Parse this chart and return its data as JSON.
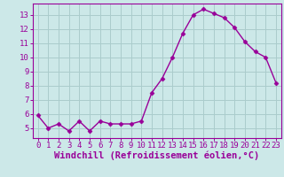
{
  "x": [
    0,
    1,
    2,
    3,
    4,
    5,
    6,
    7,
    8,
    9,
    10,
    11,
    12,
    13,
    14,
    15,
    16,
    17,
    18,
    19,
    20,
    21,
    22,
    23
  ],
  "y": [
    5.9,
    5.0,
    5.3,
    4.8,
    5.5,
    4.8,
    5.5,
    5.3,
    5.3,
    5.3,
    5.5,
    7.5,
    8.5,
    10.0,
    11.7,
    13.0,
    13.4,
    13.1,
    12.8,
    12.1,
    11.1,
    10.4,
    10.0,
    8.2
  ],
  "line_color": "#990099",
  "marker": "D",
  "marker_size": 2.5,
  "bg_color": "#cce8e8",
  "grid_color": "#aacccc",
  "xlabel": "Windchill (Refroidissement éolien,°C)",
  "xlim": [
    -0.5,
    23.5
  ],
  "ylim": [
    4.3,
    13.8
  ],
  "yticks": [
    5,
    6,
    7,
    8,
    9,
    10,
    11,
    12,
    13
  ],
  "xticks": [
    0,
    1,
    2,
    3,
    4,
    5,
    6,
    7,
    8,
    9,
    10,
    11,
    12,
    13,
    14,
    15,
    16,
    17,
    18,
    19,
    20,
    21,
    22,
    23
  ],
  "tick_color": "#990099",
  "label_color": "#990099",
  "tick_fontsize": 6.5,
  "xlabel_fontsize": 7.5
}
